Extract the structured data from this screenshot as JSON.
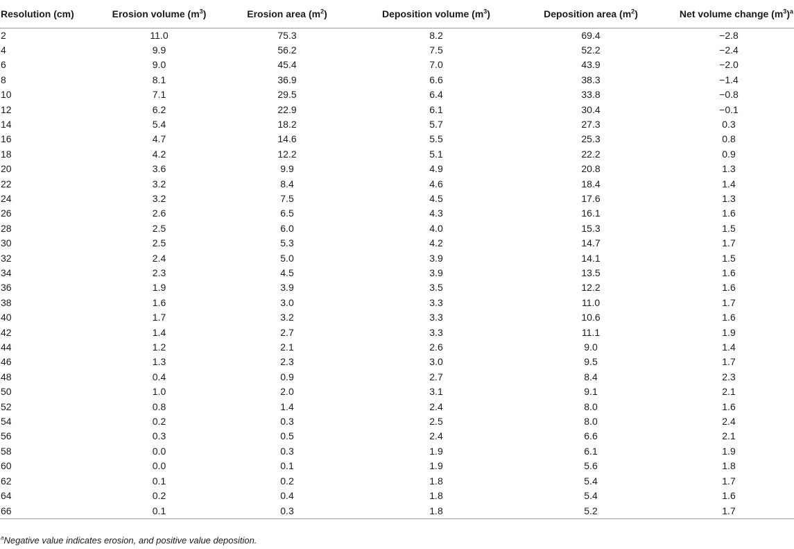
{
  "table": {
    "columns": [
      {
        "label": "Resolution (cm)",
        "unit_sup": "",
        "suffix_sup": ""
      },
      {
        "label": "Erosion volume (m",
        "unit_sup": "3",
        "suffix_sup": "",
        "close": ")"
      },
      {
        "label": "Erosion area (m",
        "unit_sup": "2",
        "suffix_sup": "",
        "close": ")"
      },
      {
        "label": "Deposition volume (m",
        "unit_sup": "3",
        "suffix_sup": "",
        "close": ")"
      },
      {
        "label": "Deposition area (m",
        "unit_sup": "2",
        "suffix_sup": "",
        "close": ")"
      },
      {
        "label": "Net volume change (m",
        "unit_sup": "3",
        "suffix_sup": "a",
        "close": ")"
      }
    ],
    "rows": [
      [
        "2",
        "11.0",
        "75.3",
        "8.2",
        "69.4",
        "−2.8"
      ],
      [
        "4",
        "9.9",
        "56.2",
        "7.5",
        "52.2",
        "−2.4"
      ],
      [
        "6",
        "9.0",
        "45.4",
        "7.0",
        "43.9",
        "−2.0"
      ],
      [
        "8",
        "8.1",
        "36.9",
        "6.6",
        "38.3",
        "−1.4"
      ],
      [
        "10",
        "7.1",
        "29.5",
        "6.4",
        "33.8",
        "−0.8"
      ],
      [
        "12",
        "6.2",
        "22.9",
        "6.1",
        "30.4",
        "−0.1"
      ],
      [
        "14",
        "5.4",
        "18.2",
        "5.7",
        "27.3",
        "0.3"
      ],
      [
        "16",
        "4.7",
        "14.6",
        "5.5",
        "25.3",
        "0.8"
      ],
      [
        "18",
        "4.2",
        "12.2",
        "5.1",
        "22.2",
        "0.9"
      ],
      [
        "20",
        "3.6",
        "9.9",
        "4.9",
        "20.8",
        "1.3"
      ],
      [
        "22",
        "3.2",
        "8.4",
        "4.6",
        "18.4",
        "1.4"
      ],
      [
        "24",
        "3.2",
        "7.5",
        "4.5",
        "17.6",
        "1.3"
      ],
      [
        "26",
        "2.6",
        "6.5",
        "4.3",
        "16.1",
        "1.6"
      ],
      [
        "28",
        "2.5",
        "6.0",
        "4.0",
        "15.3",
        "1.5"
      ],
      [
        "30",
        "2.5",
        "5.3",
        "4.2",
        "14.7",
        "1.7"
      ],
      [
        "32",
        "2.4",
        "5.0",
        "3.9",
        "14.1",
        "1.5"
      ],
      [
        "34",
        "2.3",
        "4.5",
        "3.9",
        "13.5",
        "1.6"
      ],
      [
        "36",
        "1.9",
        "3.9",
        "3.5",
        "12.2",
        "1.6"
      ],
      [
        "38",
        "1.6",
        "3.0",
        "3.3",
        "11.0",
        "1.7"
      ],
      [
        "40",
        "1.7",
        "3.2",
        "3.3",
        "10.6",
        "1.6"
      ],
      [
        "42",
        "1.4",
        "2.7",
        "3.3",
        "11.1",
        "1.9"
      ],
      [
        "44",
        "1.2",
        "2.1",
        "2.6",
        "9.0",
        "1.4"
      ],
      [
        "46",
        "1.3",
        "2.3",
        "3.0",
        "9.5",
        "1.7"
      ],
      [
        "48",
        "0.4",
        "0.9",
        "2.7",
        "8.4",
        "2.3"
      ],
      [
        "50",
        "1.0",
        "2.0",
        "3.1",
        "9.1",
        "2.1"
      ],
      [
        "52",
        "0.8",
        "1.4",
        "2.4",
        "8.0",
        "1.6"
      ],
      [
        "54",
        "0.2",
        "0.3",
        "2.5",
        "8.0",
        "2.4"
      ],
      [
        "56",
        "0.3",
        "0.5",
        "2.4",
        "6.6",
        "2.1"
      ],
      [
        "58",
        "0.0",
        "0.3",
        "1.9",
        "6.1",
        "1.9"
      ],
      [
        "60",
        "0.0",
        "0.1",
        "1.9",
        "5.6",
        "1.8"
      ],
      [
        "62",
        "0.1",
        "0.2",
        "1.8",
        "5.4",
        "1.7"
      ],
      [
        "64",
        "0.2",
        "0.4",
        "1.8",
        "5.4",
        "1.6"
      ],
      [
        "66",
        "0.1",
        "0.3",
        "1.8",
        "5.2",
        "1.7"
      ]
    ]
  },
  "footnote": {
    "marker": "a",
    "text": "Negative value indicates erosion, and positive value deposition."
  }
}
